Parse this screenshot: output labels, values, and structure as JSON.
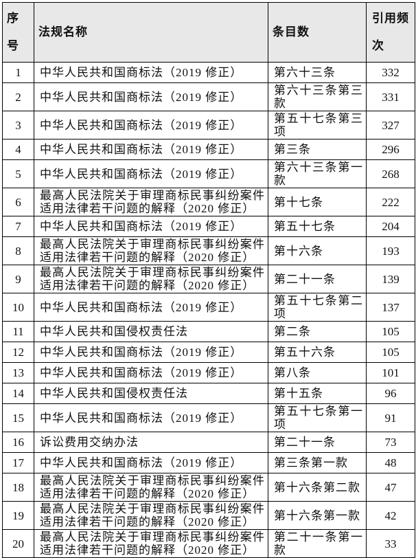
{
  "table": {
    "headers": [
      "序号",
      "法规名称",
      "条目数",
      "引用频次"
    ],
    "rows": [
      {
        "no": "1",
        "name": "中华人民共和国商标法（2019 修正）",
        "article": "第六十三条",
        "count": "332"
      },
      {
        "no": "2",
        "name": "中华人民共和国商标法（2019 修正）",
        "article": "第六十三条第三款",
        "count": "331"
      },
      {
        "no": "3",
        "name": "中华人民共和国商标法（2019 修正）",
        "article": "第五十七条第三项",
        "count": "327"
      },
      {
        "no": "4",
        "name": "中华人民共和国商标法（2019 修正）",
        "article": "第三条",
        "count": "296"
      },
      {
        "no": "5",
        "name": "中华人民共和国商标法（2019 修正）",
        "article": "第六十三条第一款",
        "count": "268"
      },
      {
        "no": "6",
        "name": "最高人民法院关于审理商标民事纠纷案件适用法律若干问题的解释（2020 修正）",
        "article": "第十七条",
        "count": "222"
      },
      {
        "no": "7",
        "name": "中华人民共和国商标法（2019 修正）",
        "article": "第五十七条",
        "count": "204"
      },
      {
        "no": "8",
        "name": "最高人民法院关于审理商标民事纠纷案件适用法律若干问题的解释（2020 修正）",
        "article": "第十六条",
        "count": "193"
      },
      {
        "no": "9",
        "name": "最高人民法院关于审理商标民事纠纷案件适用法律若干问题的解释（2020 修正）",
        "article": "第二十一条",
        "count": "139"
      },
      {
        "no": "10",
        "name": "中华人民共和国商标法（2019 修正）",
        "article": "第五十七条第二项",
        "count": "137"
      },
      {
        "no": "11",
        "name": "中华人民共和国侵权责任法",
        "article": "第二条",
        "count": "105"
      },
      {
        "no": "12",
        "name": "中华人民共和国商标法（2019 修正）",
        "article": "第五十六条",
        "count": "105"
      },
      {
        "no": "13",
        "name": "中华人民共和国商标法（2019 修正）",
        "article": "第八条",
        "count": "101"
      },
      {
        "no": "14",
        "name": "中华人民共和国侵权责任法",
        "article": "第十五条",
        "count": "96"
      },
      {
        "no": "15",
        "name": "中华人民共和国商标法（2019 修正）",
        "article": "第五十七条第一项",
        "count": "91"
      },
      {
        "no": "16",
        "name": "诉讼费用交纳办法",
        "article": "第二十一条",
        "count": "73"
      },
      {
        "no": "17",
        "name": "中华人民共和国商标法（2019 修正）",
        "article": "第三条第一款",
        "count": "48"
      },
      {
        "no": "18",
        "name": "最高人民法院关于审理商标民事纠纷案件适用法律若干问题的解释（2020 修正）",
        "article": "第十六条第二款",
        "count": "47"
      },
      {
        "no": "19",
        "name": "最高人民法院关于审理商标民事纠纷案件适用法律若干问题的解释（2020 修正）",
        "article": "第十六条第一款",
        "count": "42"
      },
      {
        "no": "20",
        "name": "最高人民法院关于审理商标民事纠纷案件适用法律若干问题的解释（2020 修正）",
        "article": "第二十一条第一款",
        "count": "33"
      }
    ]
  }
}
